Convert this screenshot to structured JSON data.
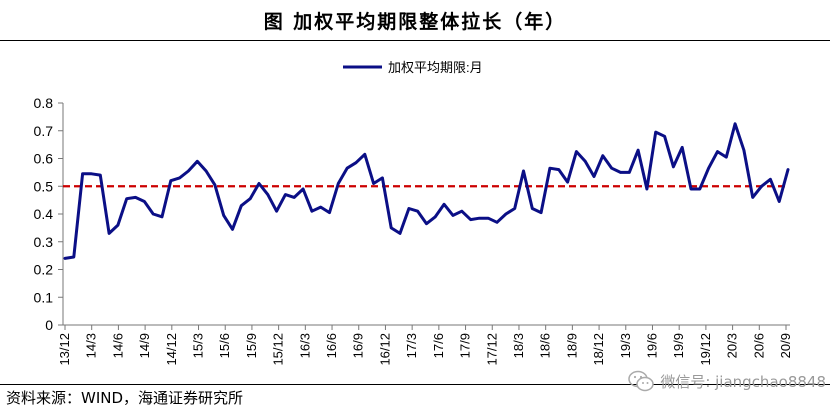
{
  "header": {
    "title": "图  加权平均期限整体拉长（年）"
  },
  "footer": {
    "source": "资料来源：WIND，海通证券研究所",
    "watermark": "微信号: jiangchao8848"
  },
  "colors": {
    "series": "#0b0f86",
    "reference": "#cc0000",
    "axis": "#777777"
  },
  "chart_data": {
    "type": "line",
    "title": "加权平均期限整体拉长（年）",
    "xlabel": "",
    "ylabel": "",
    "ylim": [
      0,
      0.8
    ],
    "yticks": [
      "0",
      "0.1",
      "0.2",
      "0.3",
      "0.4",
      "0.5",
      "0.6",
      "0.7",
      "0.8"
    ],
    "grid": false,
    "legend_position": "top-center",
    "x_tick_labels": [
      "13/12",
      "14/3",
      "14/6",
      "14/9",
      "14/12",
      "15/3",
      "15/6",
      "15/9",
      "15/12",
      "16/3",
      "16/6",
      "16/9",
      "16/12",
      "17/3",
      "17/6",
      "17/9",
      "17/12",
      "18/3",
      "18/6",
      "18/9",
      "18/12",
      "19/3",
      "19/6",
      "19/9",
      "19/12",
      "20/3",
      "20/6",
      "20/9"
    ],
    "reference_line": {
      "value": 0.5,
      "style": "dashed"
    },
    "series": [
      {
        "name": "加权平均期限:月",
        "values": [
          0.24,
          0.245,
          0.545,
          0.545,
          0.54,
          0.33,
          0.36,
          0.455,
          0.46,
          0.445,
          0.4,
          0.39,
          0.52,
          0.53,
          0.555,
          0.59,
          0.555,
          0.505,
          0.395,
          0.345,
          0.43,
          0.455,
          0.51,
          0.47,
          0.41,
          0.47,
          0.46,
          0.49,
          0.41,
          0.425,
          0.405,
          0.51,
          0.565,
          0.585,
          0.615,
          0.51,
          0.53,
          0.35,
          0.33,
          0.42,
          0.41,
          0.365,
          0.39,
          0.435,
          0.395,
          0.41,
          0.38,
          0.385,
          0.385,
          0.37,
          0.4,
          0.42,
          0.555,
          0.42,
          0.405,
          0.565,
          0.56,
          0.515,
          0.625,
          0.59,
          0.535,
          0.61,
          0.565,
          0.55,
          0.55,
          0.63,
          0.49,
          0.695,
          0.68,
          0.57,
          0.64,
          0.49,
          0.49,
          0.565,
          0.625,
          0.605,
          0.725,
          0.63,
          0.46,
          0.5,
          0.525,
          0.445,
          0.56
        ]
      }
    ]
  }
}
